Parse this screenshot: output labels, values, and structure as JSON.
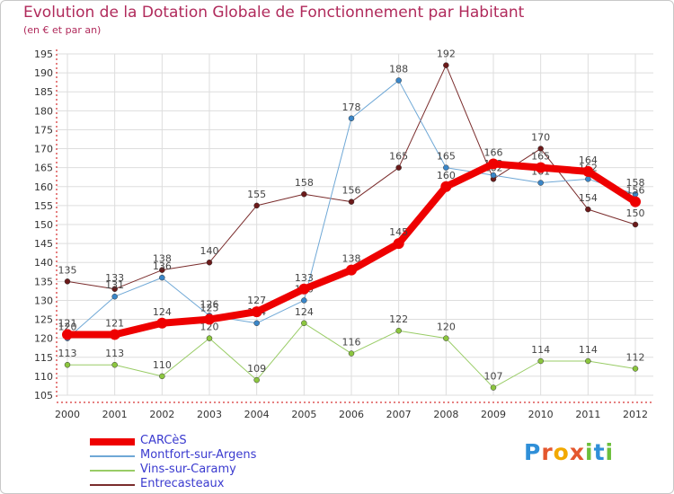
{
  "title": "Evolution de la Dotation Globale de Fonctionnement par Habitant",
  "subtitle": "(en € et par an)",
  "logo": {
    "text": "Proxiti"
  },
  "chart_data": {
    "type": "line",
    "title": "Evolution de la Dotation Globale de Fonctionnement par Habitant",
    "subtitle": "(en € et par an)",
    "xlabel": "",
    "ylabel": "",
    "x": [
      2000,
      2001,
      2002,
      2003,
      2004,
      2005,
      2006,
      2007,
      2008,
      2009,
      2010,
      2011,
      2012
    ],
    "ylim": [
      105,
      195
    ],
    "ytick_step": 5,
    "grid": true,
    "legend": "bottom-left",
    "series": [
      {
        "name": "Entrecasteaux",
        "color": "#7a2c2c",
        "marker": "#6b1a1a",
        "width": 1,
        "values": [
          135,
          133,
          138,
          140,
          155,
          158,
          156,
          165,
          192,
          162,
          170,
          154,
          150
        ],
        "labels": [
          "135",
          "133",
          "138",
          "140",
          "155",
          "158",
          "156",
          "165",
          "192",
          "162",
          "170",
          "154",
          "150"
        ]
      },
      {
        "name": "Vins-sur-Caramy",
        "color": "#99cc66",
        "marker": "#8cc63f",
        "width": 1,
        "values": [
          113,
          113,
          110,
          120,
          109,
          124,
          116,
          122,
          120,
          107,
          114,
          114,
          112
        ],
        "labels": [
          "113",
          "113",
          "110",
          "120",
          "109",
          "124",
          "116",
          "122",
          "120",
          "107",
          "114",
          "114",
          "112"
        ]
      },
      {
        "name": "Montfort-sur-Argens",
        "color": "#6fa8d6",
        "marker": "#3a86c8",
        "width": 1,
        "values": [
          120,
          131,
          136,
          126,
          124,
          130,
          178,
          188,
          165,
          163,
          161,
          162,
          158
        ],
        "labels": [
          "120",
          "131",
          "136",
          "126",
          "124",
          "130",
          "178",
          "188",
          "165",
          "163",
          "161",
          "162",
          "158"
        ]
      },
      {
        "name": "CARCèS",
        "color": "#ee0000",
        "marker": "#ee0000",
        "width": 8,
        "values": [
          121,
          121,
          124,
          125,
          127,
          133,
          138,
          145,
          160,
          166,
          165,
          164,
          156
        ],
        "labels": [
          "121",
          "121",
          "124",
          "125",
          "127",
          "133",
          "138",
          "145",
          "160",
          "166",
          "165",
          "164",
          "156"
        ]
      }
    ],
    "legend_order": [
      "CARCèS",
      "Montfort-sur-Argens",
      "Vins-sur-Caramy",
      "Entrecasteaux"
    ]
  }
}
